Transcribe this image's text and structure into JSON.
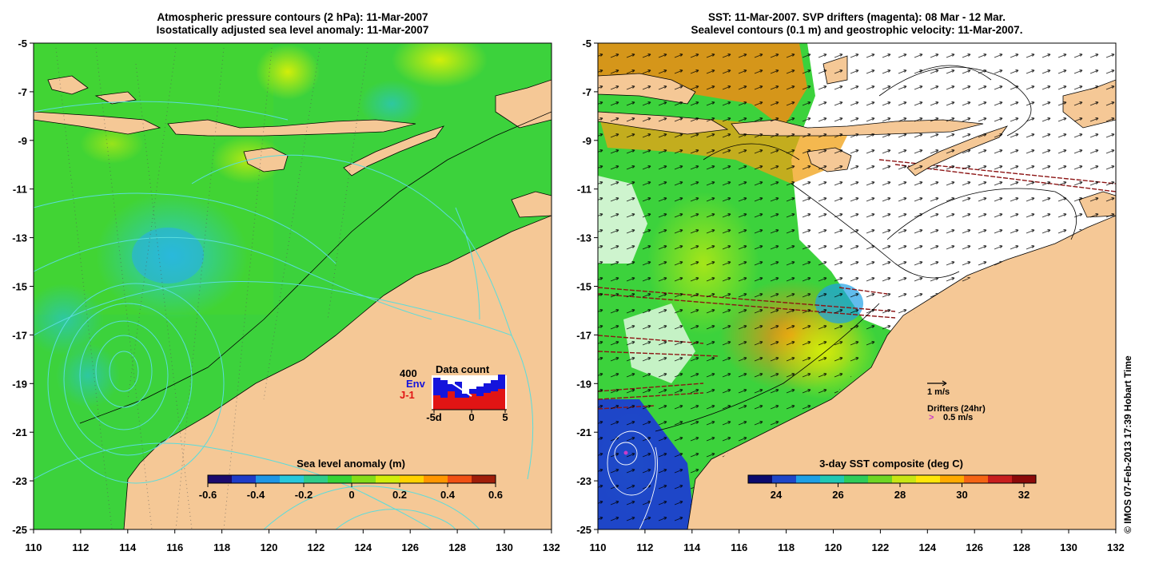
{
  "left_panel": {
    "title_line1": "Atmospheric pressure contours (2 hPa): 11-Mar-2007",
    "title_line2": "Isostatically adjusted sea level anomaly: 11-Mar-2007",
    "colorbar": {
      "label": "Sea level anomaly (m)",
      "ticks": [
        "-0.6",
        "-0.4",
        "-0.2",
        "0",
        "0.2",
        "0.4",
        "0.6"
      ],
      "colors": [
        "#1a0a6e",
        "#1e3cc8",
        "#1e96e6",
        "#28c8dc",
        "#2ecc8a",
        "#36d336",
        "#84dd18",
        "#d2ee0a",
        "#ffd200",
        "#ff9600",
        "#f05014",
        "#a01e0a"
      ]
    },
    "inset": {
      "title": "Data count",
      "max_label": "400",
      "series": [
        {
          "name": "Env",
          "color": "#1414dc"
        },
        {
          "name": "J-1",
          "color": "#e11414"
        }
      ],
      "x_ticks": [
        "-5d",
        "0",
        "5"
      ]
    }
  },
  "right_panel": {
    "title_line1": "SST: 11-Mar-2007. SVP drifters (magenta): 08 Mar - 12 Mar.",
    "title_line2": "Sealevel contours (0.1 m) and geostrophic velocity: 11-Mar-2007.",
    "colorbar": {
      "label": "3-day SST composite (deg C)",
      "ticks": [
        "24",
        "26",
        "28",
        "30",
        "32"
      ],
      "colors": [
        "#0a0a6e",
        "#1e46c8",
        "#1ea0e6",
        "#20c8b4",
        "#2ecc5a",
        "#6ed624",
        "#c8e614",
        "#ffe60a",
        "#ffaa00",
        "#f56414",
        "#c81e1e",
        "#8c0a0a"
      ]
    },
    "legend": {
      "speed_label": "1 m/s",
      "drifters_label": "Drifters (24hr)",
      "drifter_speed_label": "0.5 m/s"
    }
  },
  "axes": {
    "lat_ticks": [
      "-5",
      "-7",
      "-9",
      "-11",
      "-13",
      "-15",
      "-17",
      "-19",
      "-21",
      "-23",
      "-25"
    ],
    "lon_ticks": [
      "110",
      "112",
      "114",
      "116",
      "118",
      "120",
      "122",
      "124",
      "126",
      "128",
      "130",
      "132"
    ]
  },
  "copyright": "© IMOS 07-Feb-2013 17:39 Hobart Time",
  "colors": {
    "land": "#f5c896",
    "ocean": "#3cd23c",
    "no_data": "#ffffff",
    "contour": "#5adcdc"
  }
}
